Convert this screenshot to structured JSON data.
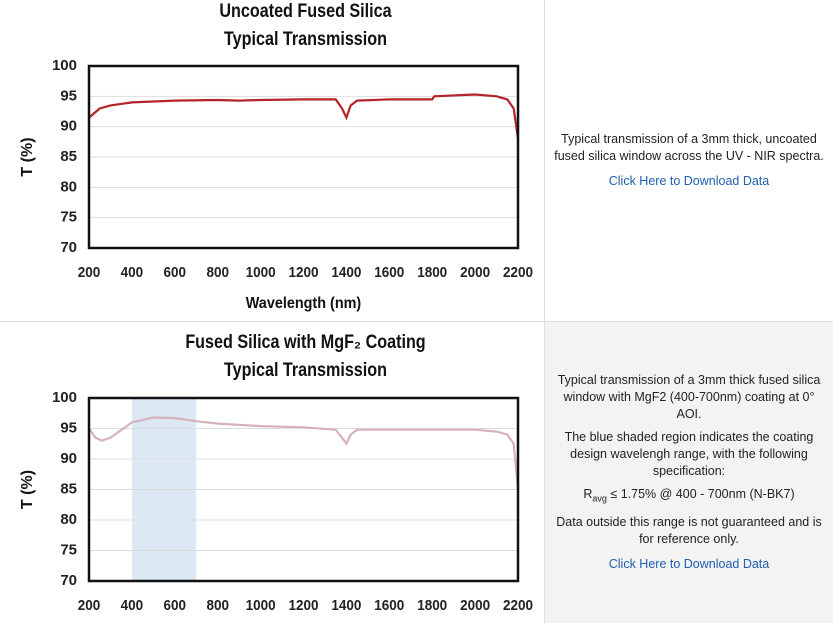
{
  "chart_data": [
    {
      "type": "line",
      "title": "Uncoated Fused Silica",
      "subtitle": "Typical Transmission",
      "xlabel": "Wavelength (nm)",
      "ylabel": "T (%)",
      "xlim": [
        200,
        2200
      ],
      "xticks": [
        200,
        400,
        600,
        800,
        1000,
        1200,
        1400,
        1600,
        1800,
        2000,
        2200
      ],
      "ylim": [
        70,
        100
      ],
      "yticks": [
        70,
        75,
        80,
        85,
        90,
        95,
        100
      ],
      "grid": true,
      "series": [
        {
          "color": "#b5222a",
          "x": [
            200,
            250,
            300,
            400,
            600,
            800,
            900,
            1000,
            1200,
            1350,
            1380,
            1400,
            1420,
            1450,
            1600,
            1800,
            1810,
            2000,
            2100,
            2150,
            2180,
            2200
          ],
          "values": [
            91.5,
            93,
            93.5,
            94,
            94.3,
            94.4,
            94.3,
            94.4,
            94.5,
            94.5,
            93,
            91.5,
            93.5,
            94.3,
            94.5,
            94.5,
            95,
            95.3,
            95,
            94.5,
            93,
            88
          ]
        }
      ]
    },
    {
      "type": "line",
      "title": "Fused Silica with MgF₂ Coating",
      "subtitle": "Typical Transmission",
      "ylabel": "T (%)",
      "xlim": [
        200,
        2200
      ],
      "xticks": [
        200,
        400,
        600,
        800,
        1000,
        1200,
        1400,
        1600,
        1800,
        2000,
        2200
      ],
      "ylim": [
        70,
        100
      ],
      "yticks": [
        70,
        75,
        80,
        85,
        90,
        95,
        100
      ],
      "grid": true,
      "shade": [
        400,
        700
      ],
      "shade_color": "#dce9f5",
      "series": [
        {
          "color": "#d6b3bb",
          "x": [
            200,
            230,
            260,
            300,
            400,
            500,
            600,
            700,
            800,
            1000,
            1200,
            1350,
            1390,
            1400,
            1420,
            1450,
            1600,
            1800,
            2000,
            2100,
            2150,
            2180,
            2200
          ],
          "values": [
            95,
            93.5,
            93,
            93.5,
            96,
            96.8,
            96.7,
            96.2,
            95.8,
            95.4,
            95.2,
            94.8,
            93,
            92.5,
            94,
            94.8,
            94.8,
            94.8,
            94.8,
            94.5,
            94,
            92.5,
            85
          ]
        }
      ]
    }
  ],
  "descriptions": [
    {
      "paragraphs": [
        "Typical transmission of a 3mm thick, uncoated fused silica window across the UV - NIR spectra."
      ],
      "link": "Click Here to Download Data"
    },
    {
      "paragraphs": [
        "Typical transmission of a 3mm thick fused silica window with MgF2 (400-700nm) coating at 0° AOI.",
        "The blue shaded region indicates the coating design wavelengh range, with the following specification:"
      ],
      "spec": {
        "base": "R",
        "sub": "avg",
        "rest": " ≤ 1.75% @ 400 - 700nm (N-BK7)"
      },
      "note": "Data outside this range is not guaranteed and is for reference only.",
      "link": "Click Here to Download Data"
    }
  ]
}
